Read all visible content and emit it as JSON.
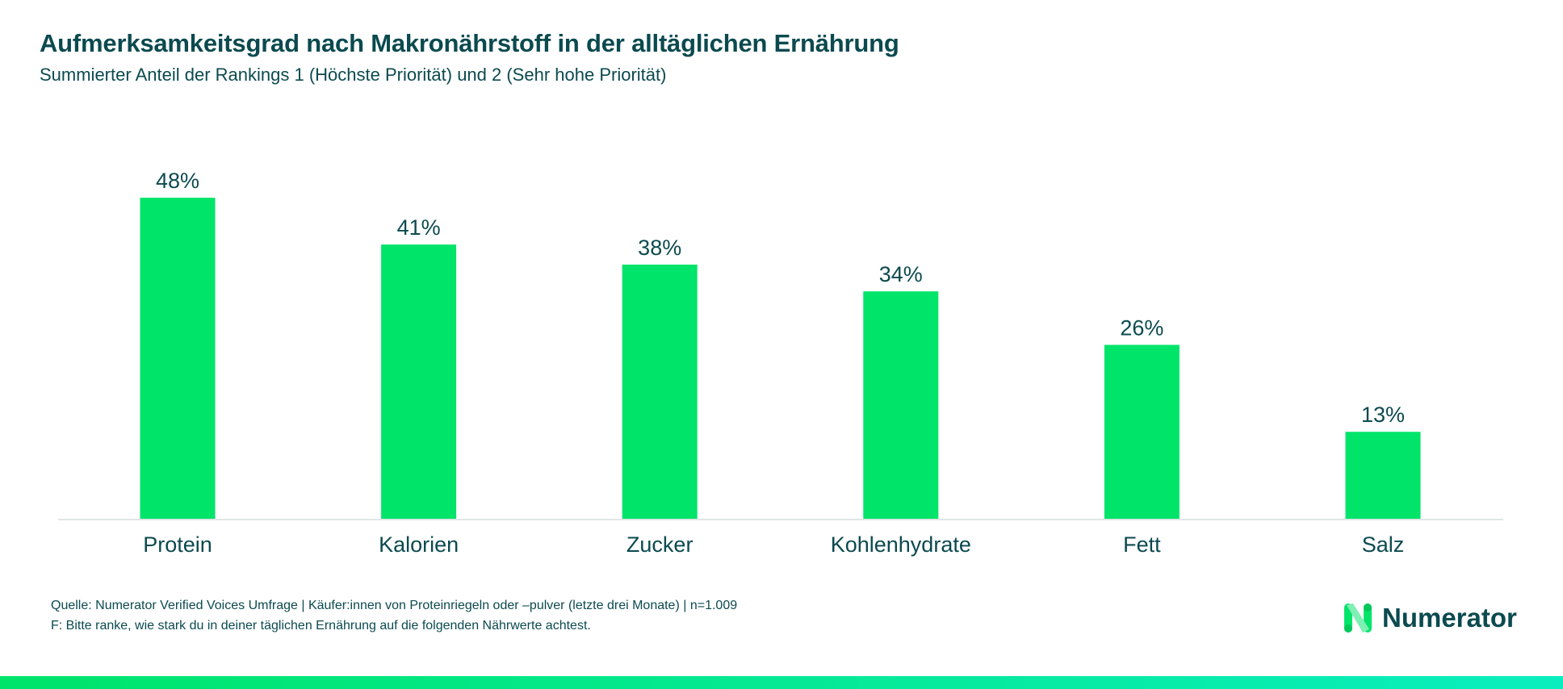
{
  "chart_data": {
    "type": "bar",
    "title": "Aufmerksamkeitsgrad nach Makronährstoff in der alltäglichen Ernährung",
    "subtitle": "Summierter Anteil der Rankings 1 (Höchste Priorität) und 2 (Sehr hohe Priorität)",
    "categories": [
      "Protein",
      "Kalorien",
      "Zucker",
      "Kohlenhydrate",
      "Fett",
      "Salz"
    ],
    "values": [
      48,
      41,
      38,
      34,
      26,
      13
    ],
    "data_labels": [
      "48%",
      "41%",
      "38%",
      "34%",
      "26%",
      "13%"
    ],
    "xlabel": "",
    "ylabel": "",
    "ylim": [
      0,
      50
    ],
    "grid": false,
    "bar_color": "#00e46a"
  },
  "footer": {
    "source": "Quelle: Numerator Verified Voices Umfrage | Käufer:innen von Proteinriegeln oder –pulver (letzte drei Monate) | n=1.009",
    "question": "F: Bitte ranke, wie stark du in deiner täglichen Ernährung auf die folgenden Nährwerte achtest."
  },
  "logo": {
    "text": "Numerator",
    "icon": "numerator-n-logo-icon"
  },
  "colors": {
    "text": "#0b4a4f",
    "accent": "#00e46a",
    "gradient_end": "#0aeebf",
    "axis": "#e0e6e6"
  }
}
